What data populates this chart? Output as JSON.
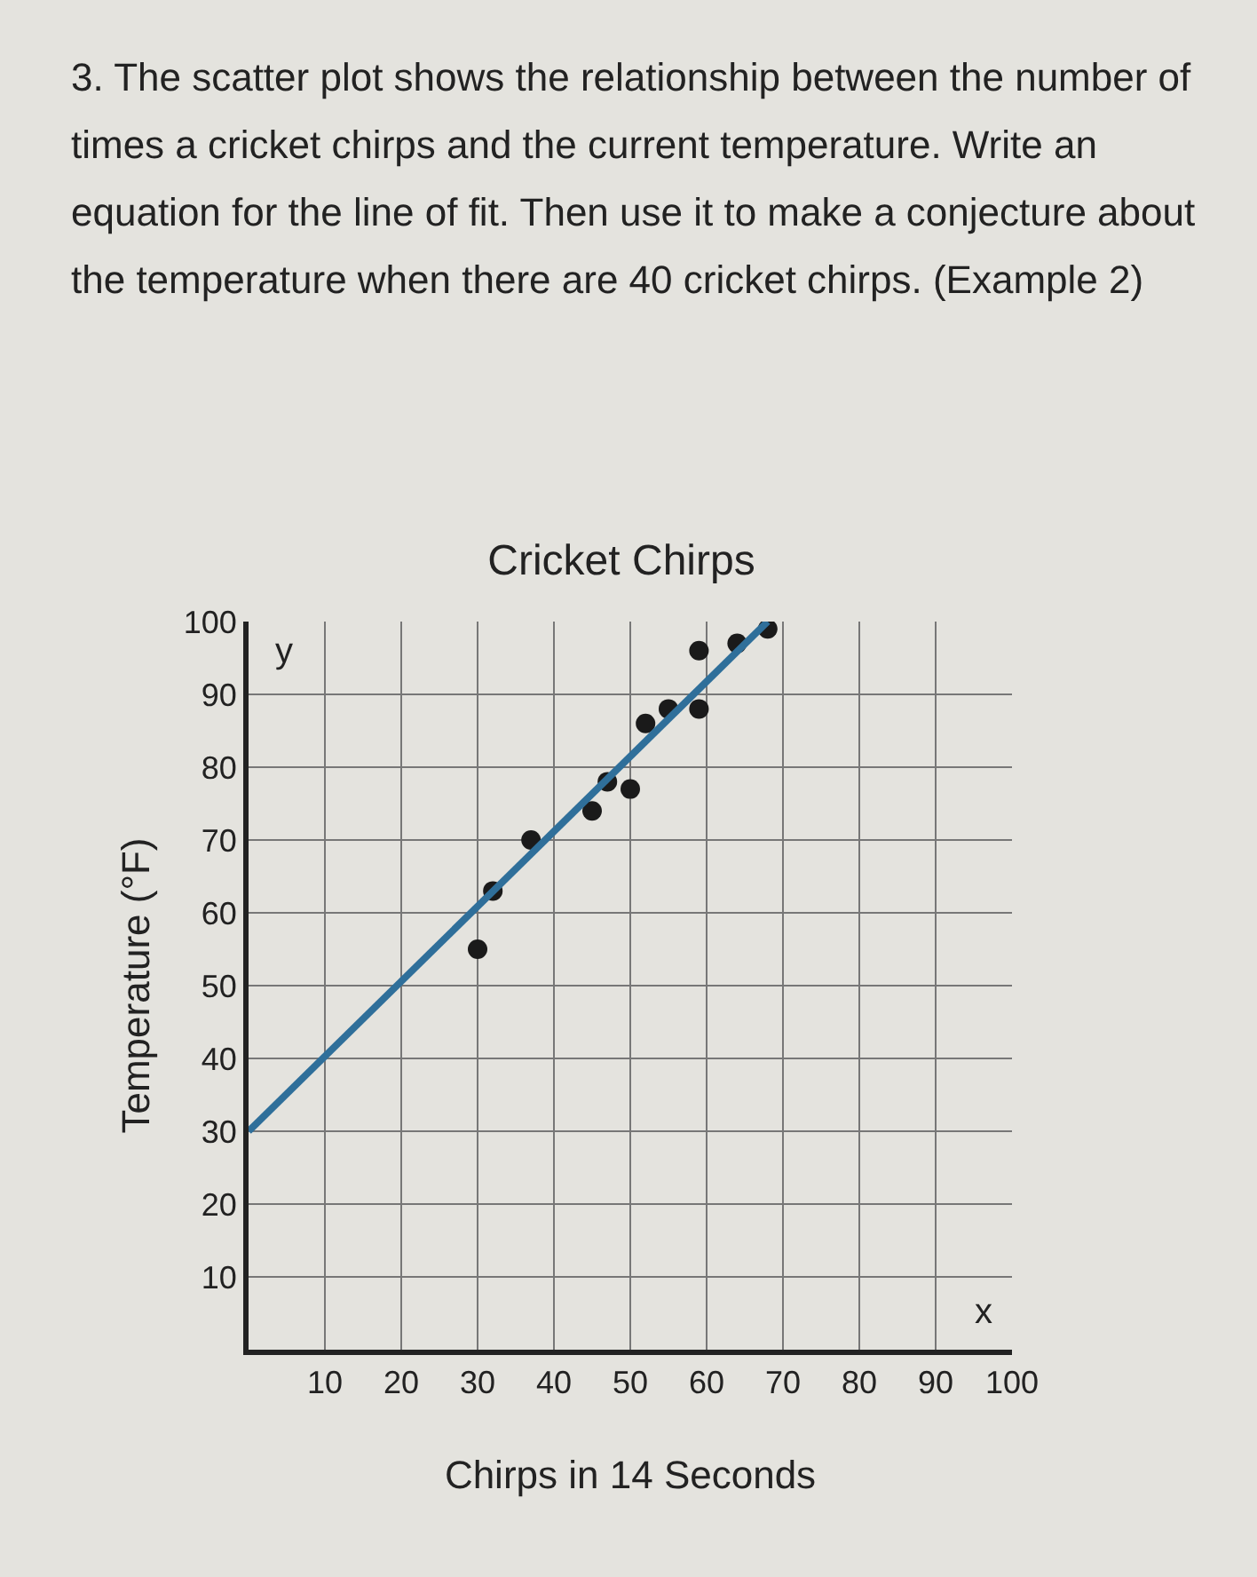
{
  "chart_data": {
    "type": "scatter",
    "title": "Cricket Chirps",
    "xlabel": "Chirps in 14 Seconds",
    "ylabel": "Temperature (°F)",
    "annotations": [
      "3. The scatter plot shows the relationship between the number of times a cricket chirps and the current temperature. Write an equation for the line of fit. Then use it to make a conjecture about the temperature when there are 40 cricket chirps. (Example 2)",
      "y",
      "x"
    ],
    "x": [
      30,
      32,
      37,
      45,
      47,
      50,
      52,
      55,
      59,
      59,
      64,
      68
    ],
    "series": [
      {
        "color": "#1a1a1a",
        "marker": "circle",
        "values": [
          55,
          63,
          70,
          74,
          78,
          77,
          86,
          88,
          88,
          96,
          97,
          99
        ]
      },
      {
        "type": "line",
        "color": "#2f6f9a",
        "x": [
          0,
          68
        ],
        "values": [
          30,
          100
        ],
        "marker": "none"
      }
    ],
    "xlim": [
      0,
      100
    ],
    "ylim": [
      0,
      100
    ],
    "xticks": [
      10,
      20,
      30,
      40,
      50,
      60,
      70,
      80,
      90,
      100
    ],
    "yticks": [
      10,
      20,
      30,
      40,
      50,
      60,
      70,
      80,
      90,
      100
    ],
    "grid": true
  }
}
